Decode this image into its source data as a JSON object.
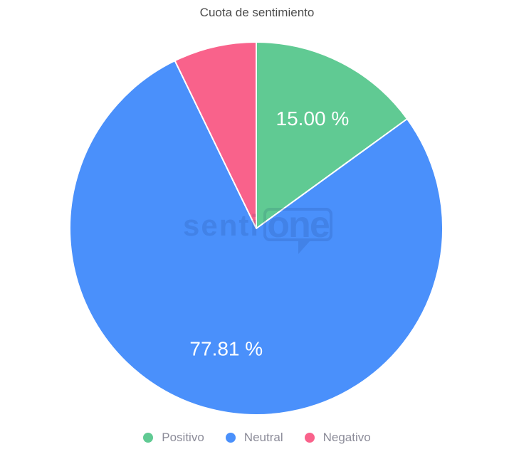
{
  "chart_data": {
    "type": "pie",
    "title": "Cuota de sentimiento",
    "legend_position": "bottom",
    "direction": "clockwise",
    "start_angle_deg": 0,
    "label_color": "#ffffff",
    "series": [
      {
        "name": "Positivo",
        "value": 15.0,
        "display_label": "15.00 %",
        "color": "#60ca93"
      },
      {
        "name": "Neutral",
        "value": 77.81,
        "display_label": "77.81 %",
        "color": "#4a90fb"
      },
      {
        "name": "Negativo",
        "value": 7.19,
        "display_label": "",
        "color": "#f9628b"
      }
    ]
  },
  "watermark": {
    "text_left": "senti",
    "text_boxed": "one"
  },
  "colors": {
    "title_text": "#4b4b4b",
    "legend_text": "#8c8c99",
    "background": "#ffffff",
    "slice_border": "#ffffff"
  }
}
